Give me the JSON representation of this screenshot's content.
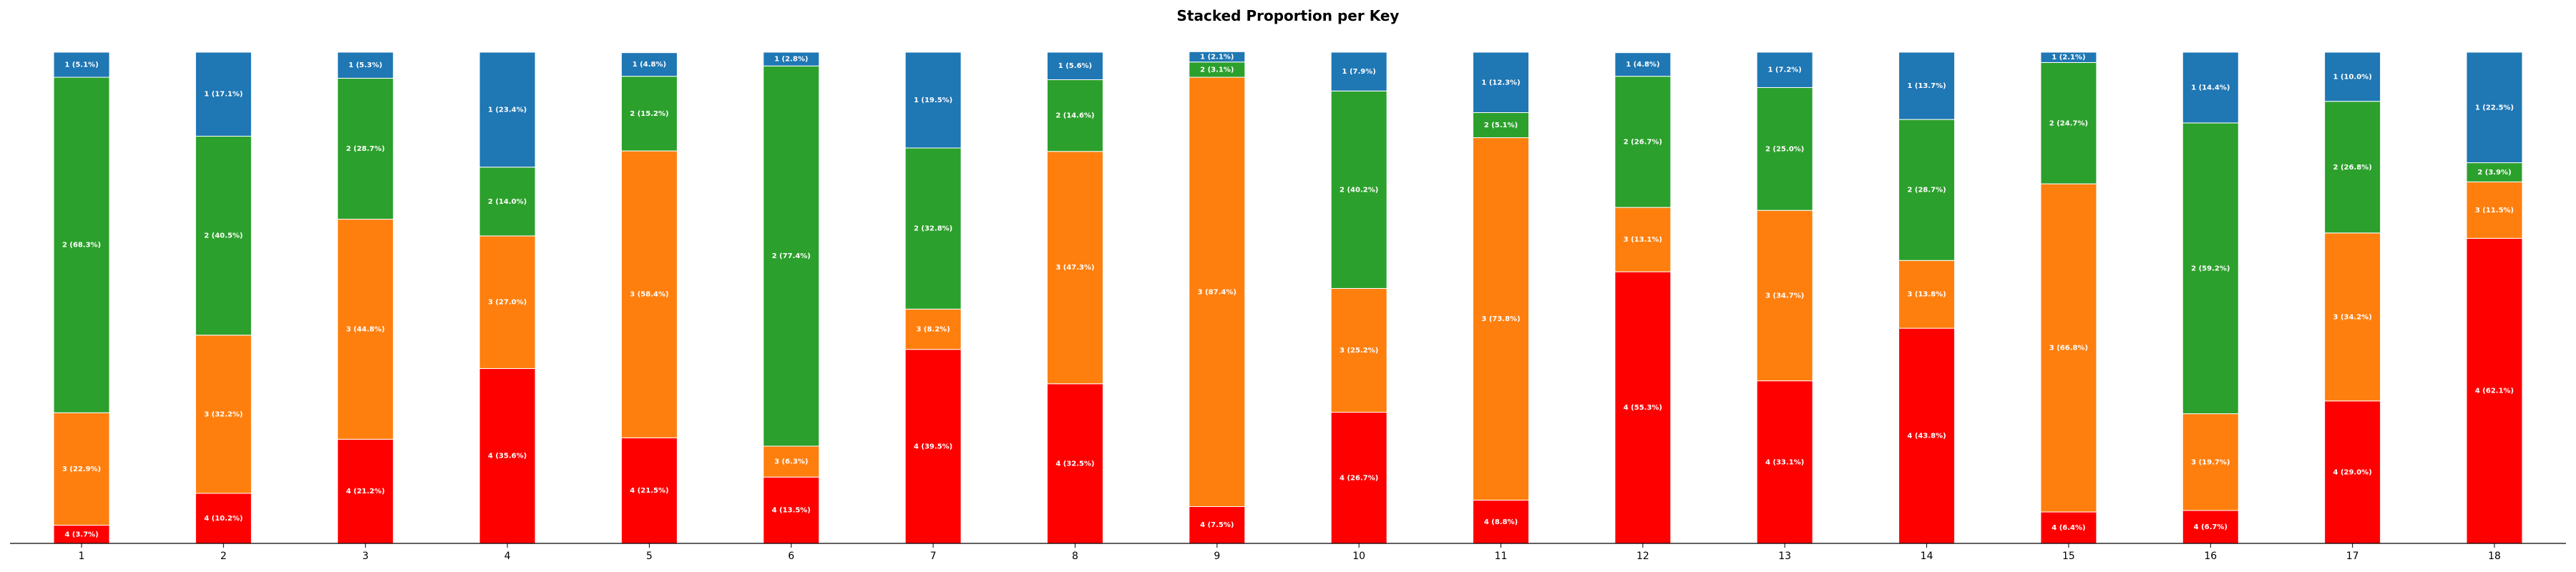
{
  "chart_data": {
    "type": "bar",
    "stacked": true,
    "title": "Stacked Proportion per Key",
    "xlabel": "",
    "ylabel": "",
    "categories": [
      "1",
      "2",
      "3",
      "4",
      "5",
      "6",
      "7",
      "8",
      "9",
      "10",
      "11",
      "12",
      "13",
      "14",
      "15",
      "16",
      "17",
      "18"
    ],
    "ylim": [
      0,
      100
    ],
    "grid": false,
    "series": [
      {
        "name": "4",
        "color": "#ff0000",
        "values": [
          3.7,
          10.2,
          21.2,
          35.6,
          21.5,
          13.5,
          39.5,
          32.5,
          7.5,
          26.7,
          8.8,
          55.3,
          33.1,
          43.8,
          6.4,
          6.7,
          29.0,
          62.1
        ]
      },
      {
        "name": "3",
        "color": "#ff7f0e",
        "values": [
          22.9,
          32.2,
          44.8,
          27.0,
          58.4,
          6.3,
          8.2,
          47.3,
          87.4,
          25.2,
          73.8,
          13.1,
          34.7,
          13.8,
          66.8,
          19.7,
          34.2,
          11.5
        ]
      },
      {
        "name": "2",
        "color": "#2ca02c",
        "values": [
          68.3,
          40.5,
          28.7,
          14.0,
          15.2,
          77.4,
          32.8,
          14.6,
          3.1,
          40.2,
          5.1,
          26.7,
          25.0,
          28.7,
          24.7,
          59.2,
          26.8,
          3.9
        ]
      },
      {
        "name": "1",
        "color": "#1f77b4",
        "values": [
          5.1,
          17.1,
          5.3,
          23.4,
          4.8,
          2.8,
          19.5,
          5.6,
          2.1,
          7.9,
          12.3,
          4.8,
          7.2,
          13.7,
          2.1,
          14.4,
          10.0,
          22.5
        ]
      }
    ],
    "labels": [
      [
        "4 (3.7%)",
        "4 (10.2%)",
        "4 (21.2%)",
        "4 (35.6%)",
        "4 (21.5%)",
        "4 (13.5%)",
        "4 (39.5%)",
        "4 (32.5%)",
        "4 (7.5%)",
        "4 (26.7%)",
        "4 (8.8%)",
        "4 (55.3%)",
        "4 (33.1%)",
        "4 (43.8%)",
        "4 (6.4%)",
        "4 (6.7%)",
        "4 (29.0%)",
        "4 (62.1%)"
      ],
      [
        "3 (22.9%)",
        "3 (32.2%)",
        "3 (44.8%)",
        "3 (27.0%)",
        "3 (58.4%)",
        "3 (6.3%)",
        "3 (8.2%)",
        "3 (47.3%)",
        "3 (87.4%)",
        "3 (25.2%)",
        "3 (73.8%)",
        "3 (13.1%)",
        "3 (34.7%)",
        "3 (13.8%)",
        "3 (66.8%)",
        "3 (19.7%)",
        "3 (34.2%)",
        "3 (11.5%)"
      ],
      [
        "2 (68.3%)",
        "2 (40.5%)",
        "2 (28.7%)",
        "2 (14.0%)",
        "2 (15.2%)",
        "2 (77.4%)",
        "2 (32.8%)",
        "2 (14.6%)",
        "2 (3.1%)",
        "2 (40.2%)",
        "2 (5.1%)",
        "2 (26.7%)",
        "2 (25.0%)",
        "2 (28.7%)",
        "2 (24.7%)",
        "2 (59.2%)",
        "2 (26.8%)",
        "2 (3.9%)"
      ],
      [
        "1 (5.1%)",
        "1 (17.1%)",
        "1 (5.3%)",
        "1 (23.4%)",
        "1 (4.8%)",
        "1 (2.8%)",
        "1 (19.5%)",
        "1 (5.6%)",
        "1 (2.1%)",
        "1 (7.9%)",
        "1 (12.3%)",
        "1 (4.8%)",
        "1 (7.2%)",
        "1 (13.7%)",
        "1 (2.1%)",
        "1 (14.4%)",
        "1 (10.0%)",
        "1 (22.5%)"
      ]
    ]
  }
}
